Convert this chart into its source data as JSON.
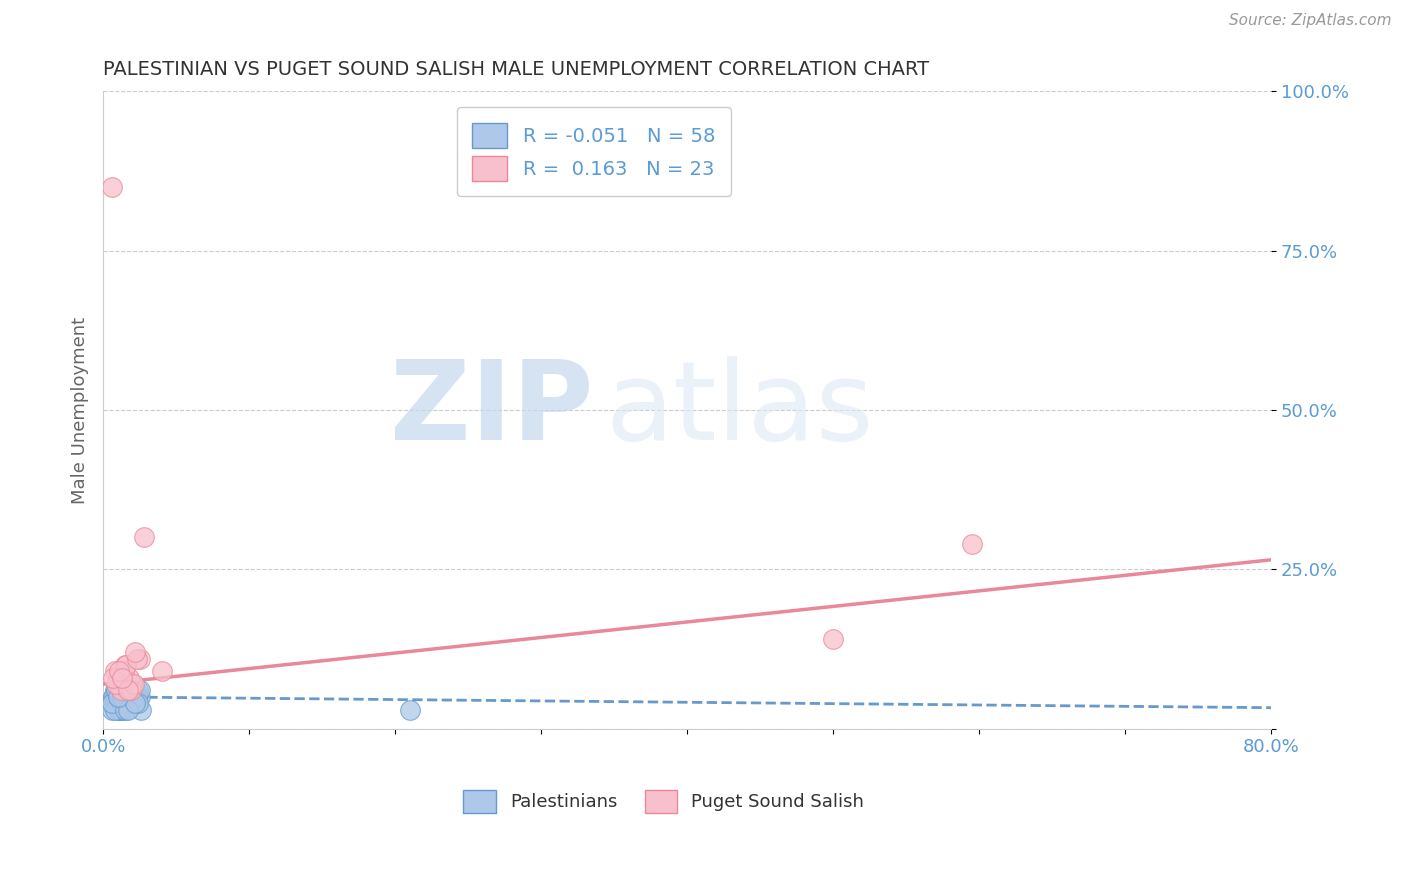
{
  "title": "PALESTINIAN VS PUGET SOUND SALISH MALE UNEMPLOYMENT CORRELATION CHART",
  "source_text": "Source: ZipAtlas.com",
  "ylabel": "Male Unemployment",
  "xlim": [
    0.0,
    0.8
  ],
  "ylim": [
    0.0,
    1.0
  ],
  "xticks": [
    0.0,
    0.1,
    0.2,
    0.3,
    0.4,
    0.5,
    0.6,
    0.7,
    0.8
  ],
  "xticklabels": [
    "0.0%",
    "",
    "",
    "",
    "",
    "",
    "",
    "",
    "80.0%"
  ],
  "yticks": [
    0.0,
    0.25,
    0.5,
    0.75,
    1.0
  ],
  "yticklabels": [
    "",
    "25.0%",
    "50.0%",
    "75.0%",
    "100.0%"
  ],
  "blue_color": "#adc8e8",
  "pink_color": "#f8c0cc",
  "blue_edge_color": "#6699cc",
  "pink_edge_color": "#e88898",
  "blue_line_color": "#6699cc",
  "pink_line_color": "#e88898",
  "legend_r_blue": "-0.051",
  "legend_n_blue": "58",
  "legend_r_pink": "0.163",
  "legend_n_pink": "23",
  "watermark_zip": "ZIP",
  "watermark_atlas": "atlas",
  "blue_scatter_x": [
    0.005,
    0.008,
    0.012,
    0.015,
    0.01,
    0.018,
    0.022,
    0.007,
    0.013,
    0.016,
    0.009,
    0.02,
    0.025,
    0.011,
    0.014,
    0.017,
    0.019,
    0.023,
    0.006,
    0.01,
    0.013,
    0.015,
    0.018,
    0.021,
    0.008,
    0.012,
    0.016,
    0.02,
    0.024,
    0.007,
    0.011,
    0.015,
    0.019,
    0.009,
    0.013,
    0.017,
    0.022,
    0.026,
    0.01,
    0.014,
    0.018,
    0.023,
    0.008,
    0.012,
    0.016,
    0.021,
    0.025,
    0.006,
    0.011,
    0.015,
    0.019,
    0.024,
    0.009,
    0.013,
    0.017,
    0.022,
    0.21,
    0.01
  ],
  "blue_scatter_y": [
    0.04,
    0.06,
    0.03,
    0.07,
    0.05,
    0.04,
    0.06,
    0.05,
    0.03,
    0.07,
    0.04,
    0.06,
    0.05,
    0.03,
    0.07,
    0.04,
    0.06,
    0.05,
    0.03,
    0.04,
    0.07,
    0.05,
    0.06,
    0.04,
    0.05,
    0.03,
    0.07,
    0.04,
    0.06,
    0.05,
    0.03,
    0.04,
    0.07,
    0.05,
    0.06,
    0.04,
    0.05,
    0.03,
    0.07,
    0.04,
    0.06,
    0.05,
    0.03,
    0.04,
    0.07,
    0.05,
    0.06,
    0.04,
    0.05,
    0.03,
    0.07,
    0.04,
    0.06,
    0.05,
    0.03,
    0.04,
    0.03,
    0.05
  ],
  "pink_scatter_x": [
    0.01,
    0.015,
    0.02,
    0.008,
    0.012,
    0.018,
    0.025,
    0.009,
    0.014,
    0.019,
    0.007,
    0.016,
    0.021,
    0.011,
    0.017,
    0.023,
    0.013,
    0.006,
    0.022,
    0.028,
    0.04,
    0.595,
    0.5
  ],
  "pink_scatter_y": [
    0.08,
    0.1,
    0.07,
    0.09,
    0.06,
    0.08,
    0.11,
    0.07,
    0.09,
    0.06,
    0.08,
    0.1,
    0.07,
    0.09,
    0.06,
    0.11,
    0.08,
    0.85,
    0.12,
    0.3,
    0.09,
    0.29,
    0.14
  ],
  "blue_trend_x": [
    0.0,
    0.8
  ],
  "blue_trend_y": [
    0.05,
    0.033
  ],
  "pink_trend_x": [
    0.0,
    0.8
  ],
  "pink_trend_y": [
    0.07,
    0.265
  ]
}
